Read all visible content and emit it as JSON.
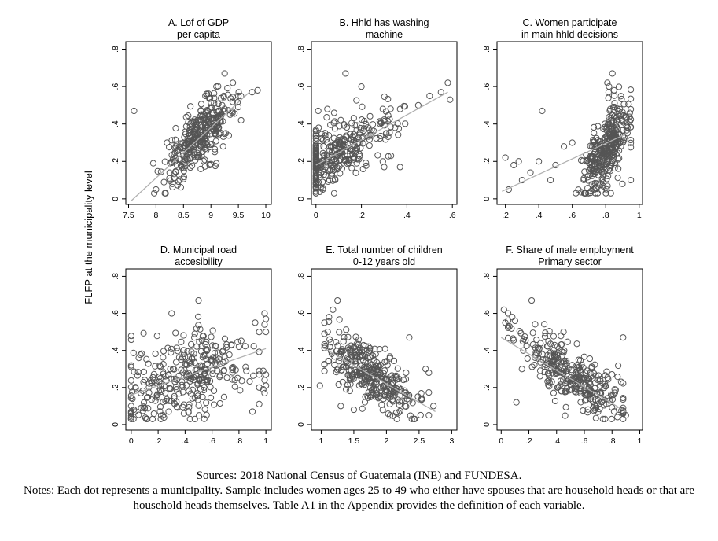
{
  "figure": {
    "y_axis_label": "FLFP at the municipality level",
    "sources": "Sources: 2018 National Census of Guatemala (INE) and FUNDESA.",
    "notes": "Notes: Each dot represents a municipality. Sample includes women ages 25 to 49 who either have spouses that are household heads or that are household heads themselves. Table A1 in the Appendix provides the definition of each variable."
  },
  "chart_data": [
    {
      "panel": "A",
      "type": "scatter",
      "title_lines": [
        "A. Lof of GDP",
        "per capita"
      ],
      "xlim": [
        7.45,
        10.1
      ],
      "ylim": [
        -0.03,
        0.84
      ],
      "xticks": [
        7.5,
        8,
        8.5,
        9,
        9.5,
        10
      ],
      "xtick_labels": [
        "7.5",
        "8",
        "8.5",
        "9",
        "9.5",
        "10"
      ],
      "yticks": [
        0,
        0.2,
        0.4,
        0.6,
        0.8
      ],
      "ytick_labels": [
        "0",
        ".2",
        ".4",
        ".6",
        ".8"
      ],
      "fit_line": [
        [
          7.55,
          -0.01
        ],
        [
          9.7,
          0.57
        ]
      ],
      "cloud": {
        "n": 330,
        "xmin": 7.9,
        "xmax": 9.8,
        "x_center": 8.8,
        "x_sd": 0.32,
        "slope": 0.27,
        "intercept": -2.04,
        "noise_sd": 0.075
      },
      "points": [
        [
          7.6,
          0.47
        ],
        [
          9.25,
          0.67
        ],
        [
          9.85,
          0.58
        ],
        [
          9.75,
          0.57
        ],
        [
          9.4,
          0.62
        ],
        [
          9.1,
          0.6
        ],
        [
          9.5,
          0.55
        ],
        [
          8.9,
          0.55
        ],
        [
          9.35,
          0.45
        ],
        [
          9.55,
          0.42
        ],
        [
          9.1,
          0.19
        ],
        [
          8.3,
          0.08
        ],
        [
          8.0,
          0.05
        ],
        [
          7.95,
          0.19
        ],
        [
          8.2,
          0.3
        ]
      ]
    },
    {
      "panel": "B",
      "type": "scatter",
      "title_lines": [
        "B. Hhld has washing",
        "machine"
      ],
      "xlim": [
        -0.02,
        0.62
      ],
      "ylim": [
        -0.03,
        0.84
      ],
      "xticks": [
        0,
        0.2,
        0.4,
        0.6
      ],
      "xtick_labels": [
        "0",
        ".2",
        ".4",
        ".6"
      ],
      "yticks": [
        0,
        0.2,
        0.4,
        0.6,
        0.8
      ],
      "ytick_labels": [
        "0",
        ".2",
        ".4",
        ".6",
        ".8"
      ],
      "fit_line": [
        [
          0.0,
          0.18
        ],
        [
          0.58,
          0.57
        ]
      ],
      "cloud": {
        "n": 330,
        "xmin": 0.0,
        "xmax": 0.59,
        "x_center": 0.1,
        "x_sd": 0.12,
        "slope": 0.67,
        "intercept": 0.18,
        "noise_sd": 0.085
      },
      "points": [
        [
          0.13,
          0.67
        ],
        [
          0.2,
          0.6
        ],
        [
          0.58,
          0.62
        ],
        [
          0.59,
          0.53
        ],
        [
          0.5,
          0.55
        ],
        [
          0.55,
          0.57
        ],
        [
          0.45,
          0.5
        ],
        [
          0.37,
          0.48
        ],
        [
          0.01,
          0.47
        ],
        [
          0.05,
          0.48
        ],
        [
          0.08,
          0.46
        ],
        [
          0.33,
          0.23
        ],
        [
          0.37,
          0.17
        ],
        [
          0.3,
          0.17
        ],
        [
          0.03,
          0.05
        ],
        [
          0.08,
          0.03
        ]
      ]
    },
    {
      "panel": "C",
      "type": "scatter",
      "title_lines": [
        "C. Women participate",
        "in main hhld decisions"
      ],
      "xlim": [
        0.15,
        1.02
      ],
      "ylim": [
        -0.03,
        0.84
      ],
      "xticks": [
        0.2,
        0.4,
        0.6,
        0.8,
        1
      ],
      "xtick_labels": [
        ".2",
        ".4",
        ".6",
        ".8",
        "1"
      ],
      "yticks": [
        0,
        0.2,
        0.4,
        0.6,
        0.8
      ],
      "ytick_labels": [
        "0",
        ".2",
        ".4",
        ".6",
        ".8"
      ],
      "fit_line": [
        [
          0.18,
          0.04
        ],
        [
          0.93,
          0.35
        ]
      ],
      "cloud": {
        "n": 330,
        "xmin": 0.45,
        "xmax": 0.95,
        "x_center": 0.8,
        "x_sd": 0.07,
        "slope": 1.1,
        "intercept": -0.63,
        "noise_sd": 0.1
      },
      "points": [
        [
          0.2,
          0.22
        ],
        [
          0.25,
          0.18
        ],
        [
          0.28,
          0.2
        ],
        [
          0.22,
          0.05
        ],
        [
          0.3,
          0.1
        ],
        [
          0.35,
          0.14
        ],
        [
          0.42,
          0.47
        ],
        [
          0.4,
          0.2
        ],
        [
          0.47,
          0.1
        ],
        [
          0.5,
          0.18
        ],
        [
          0.55,
          0.28
        ],
        [
          0.6,
          0.3
        ],
        [
          0.84,
          0.67
        ],
        [
          0.81,
          0.62
        ],
        [
          0.82,
          0.6
        ],
        [
          0.85,
          0.58
        ],
        [
          0.95,
          0.1
        ],
        [
          0.9,
          0.08
        ]
      ]
    },
    {
      "panel": "D",
      "type": "scatter",
      "title_lines": [
        "D. Municipal road",
        "accesibility"
      ],
      "xlim": [
        -0.04,
        1.04
      ],
      "ylim": [
        -0.03,
        0.84
      ],
      "xticks": [
        0,
        0.2,
        0.4,
        0.6,
        0.8,
        1
      ],
      "xtick_labels": [
        "0",
        ".2",
        ".4",
        ".6",
        ".8",
        "1"
      ],
      "yticks": [
        0,
        0.2,
        0.4,
        0.6,
        0.8
      ],
      "ytick_labels": [
        "0",
        ".2",
        ".4",
        ".6",
        ".8"
      ],
      "fit_line": [
        [
          0.0,
          0.16
        ],
        [
          1.0,
          0.41
        ]
      ],
      "cloud": {
        "n": 320,
        "xmin": 0.0,
        "xmax": 0.95,
        "x_center": 0.4,
        "x_sd": 0.25,
        "slope": 0.25,
        "intercept": 0.16,
        "noise_sd": 0.12
      },
      "points": [
        [
          0.99,
          0.6
        ],
        [
          1.0,
          0.57
        ],
        [
          0.99,
          0.54
        ],
        [
          1.0,
          0.5
        ],
        [
          0.98,
          0.29
        ],
        [
          1.0,
          0.27
        ],
        [
          0.99,
          0.24
        ],
        [
          1.0,
          0.21
        ],
        [
          0.98,
          0.19
        ],
        [
          0.99,
          0.17
        ],
        [
          0.95,
          0.2
        ],
        [
          0.92,
          0.55
        ],
        [
          0.5,
          0.67
        ],
        [
          0.3,
          0.6
        ],
        [
          0.02,
          0.08
        ],
        [
          0.0,
          0.1
        ],
        [
          0.03,
          0.07
        ],
        [
          0.9,
          0.07
        ],
        [
          0.8,
          0.42
        ]
      ]
    },
    {
      "panel": "E",
      "type": "scatter",
      "title_lines": [
        "E. Total number of children",
        "0-12 years old"
      ],
      "xlim": [
        0.85,
        3.08
      ],
      "ylim": [
        -0.03,
        0.84
      ],
      "xticks": [
        1,
        1.5,
        2,
        2.5,
        3
      ],
      "xtick_labels": [
        "1",
        "1.5",
        "2",
        "2.5",
        "3"
      ],
      "yticks": [
        0,
        0.2,
        0.4,
        0.6,
        0.8
      ],
      "ytick_labels": [
        "0",
        ".2",
        ".4",
        ".6",
        ".8"
      ],
      "fit_line": [
        [
          1.0,
          0.42
        ],
        [
          2.75,
          0.07
        ]
      ],
      "cloud": {
        "n": 330,
        "xmin": 1.05,
        "xmax": 2.65,
        "x_center": 1.75,
        "x_sd": 0.35,
        "slope": -0.2,
        "intercept": 0.62,
        "noise_sd": 0.08
      },
      "points": [
        [
          0.98,
          0.21
        ],
        [
          1.25,
          0.67
        ],
        [
          1.12,
          0.58
        ],
        [
          1.18,
          0.62
        ],
        [
          1.05,
          0.55
        ],
        [
          1.1,
          0.5
        ],
        [
          2.35,
          0.47
        ],
        [
          2.3,
          0.28
        ],
        [
          2.6,
          0.3
        ],
        [
          2.65,
          0.28
        ],
        [
          2.72,
          0.1
        ],
        [
          2.65,
          0.05
        ],
        [
          1.3,
          0.1
        ],
        [
          1.5,
          0.08
        ]
      ]
    },
    {
      "panel": "F",
      "type": "scatter",
      "title_lines": [
        "F. Share of male employment",
        "Primary sector"
      ],
      "xlim": [
        -0.03,
        1.02
      ],
      "ylim": [
        -0.03,
        0.84
      ],
      "xticks": [
        0,
        0.2,
        0.4,
        0.6,
        0.8,
        1
      ],
      "xtick_labels": [
        "0",
        ".2",
        ".4",
        ".6",
        ".8",
        "1"
      ],
      "yticks": [
        0,
        0.2,
        0.4,
        0.6,
        0.8
      ],
      "ytick_labels": [
        "0",
        ".2",
        ".4",
        ".6",
        ".8"
      ],
      "fit_line": [
        [
          0.0,
          0.47
        ],
        [
          0.9,
          0.07
        ]
      ],
      "cloud": {
        "n": 320,
        "xmin": 0.05,
        "xmax": 0.88,
        "x_center": 0.5,
        "x_sd": 0.2,
        "slope": -0.45,
        "intercept": 0.5,
        "noise_sd": 0.07
      },
      "points": [
        [
          0.02,
          0.62
        ],
        [
          0.05,
          0.6
        ],
        [
          0.08,
          0.58
        ],
        [
          0.1,
          0.56
        ],
        [
          0.03,
          0.55
        ],
        [
          0.06,
          0.53
        ],
        [
          0.22,
          0.67
        ],
        [
          0.88,
          0.47
        ],
        [
          0.9,
          0.05
        ],
        [
          0.85,
          0.08
        ],
        [
          0.11,
          0.12
        ],
        [
          0.15,
          0.3
        ],
        [
          0.45,
          0.5
        ]
      ]
    }
  ]
}
